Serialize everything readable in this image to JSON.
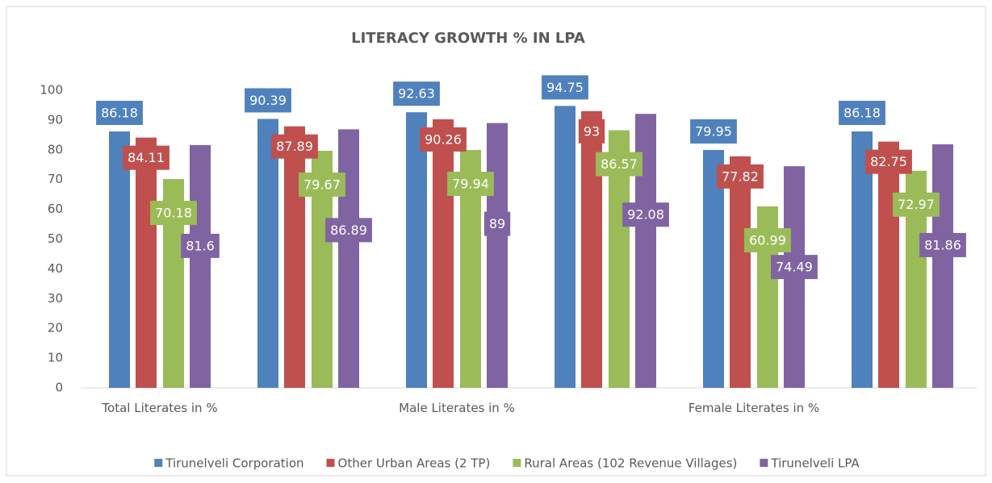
{
  "chart_data": {
    "type": "bar",
    "title": "LITERACY GROWTH % IN LPA",
    "categories": [
      "Total Literates in %",
      null,
      "Male Literates in %",
      null,
      "Female Literates in %",
      null
    ],
    "series": [
      {
        "name": "Tirunelveli Corporation",
        "color": "#4f81bd",
        "values": [
          86.18,
          90.39,
          92.63,
          94.75,
          79.95,
          86.18
        ]
      },
      {
        "name": "Other Urban Areas (2 TP)",
        "color": "#c0504d",
        "values": [
          84.11,
          87.89,
          90.26,
          93,
          77.82,
          82.75
        ]
      },
      {
        "name": "Rural Areas (102 Revenue Villages)",
        "color": "#9bbb59",
        "values": [
          70.18,
          79.67,
          79.94,
          86.57,
          60.99,
          72.97
        ]
      },
      {
        "name": "Tirunelveli LPA",
        "color": "#8064a2",
        "values": [
          81.6,
          86.89,
          89,
          92.08,
          74.49,
          81.86
        ]
      }
    ],
    "ylim": [
      0,
      100
    ],
    "yticks": [
      0,
      10,
      20,
      30,
      40,
      50,
      60,
      70,
      80,
      90,
      100
    ],
    "legend": "bottom"
  }
}
